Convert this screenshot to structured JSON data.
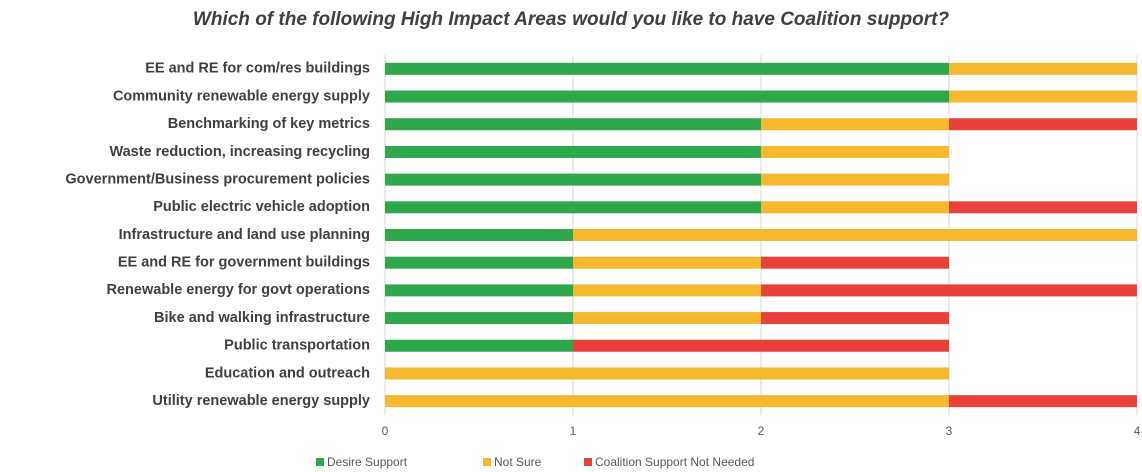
{
  "chart_data": {
    "type": "stacked-bar-horizontal",
    "title": "Which of the following High Impact Areas would you like to have Coalition support?",
    "categories": [
      "EE and RE for com/res buildings",
      "Community renewable energy supply",
      "Benchmarking of key metrics",
      "Waste reduction, increasing recycling",
      "Government/Business procurement policies",
      "Public electric vehicle adoption",
      "Infrastructure and land use planning",
      "EE and RE for government buildings",
      "Renewable energy for govt operations",
      "Bike and walking infrastructure",
      "Public transportation",
      "Education and outreach",
      "Utility renewable energy supply"
    ],
    "series": [
      {
        "name": "Desire Support",
        "color": "#2ea84a",
        "values": [
          3,
          3,
          2,
          2,
          2,
          2,
          1,
          1,
          1,
          1,
          1,
          0,
          0
        ]
      },
      {
        "name": "Not Sure",
        "color": "#f5b82e",
        "values": [
          1,
          1,
          1,
          1,
          1,
          1,
          3,
          1,
          1,
          1,
          0,
          3,
          3
        ]
      },
      {
        "name": "Coalition Support Not Needed",
        "color": "#e8413a",
        "values": [
          0,
          0,
          1,
          0,
          0,
          1,
          0,
          1,
          2,
          1,
          2,
          0,
          1
        ]
      }
    ],
    "xlim": [
      0,
      4
    ],
    "xticks": [
      0,
      1,
      2,
      3,
      4
    ],
    "grid": true,
    "legend": "bottom"
  }
}
